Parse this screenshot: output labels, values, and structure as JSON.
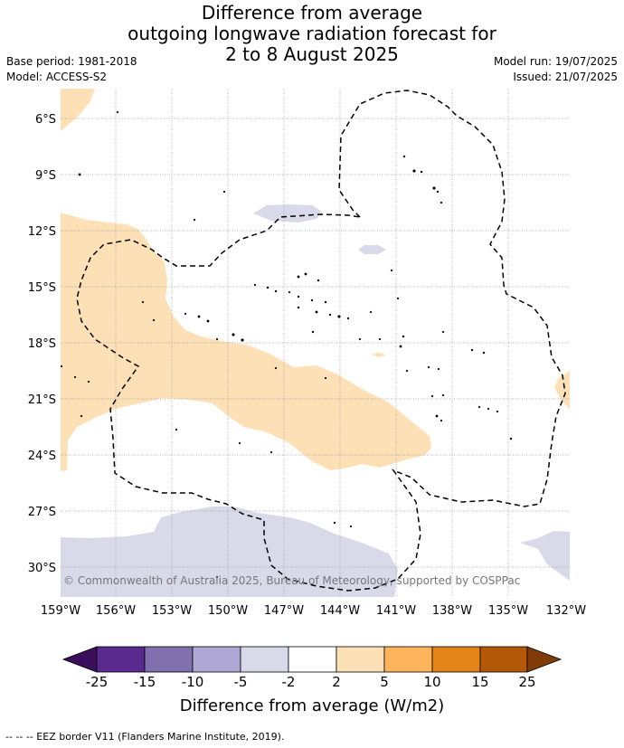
{
  "title": {
    "line1": "Difference from average",
    "line2": "outgoing longwave radiation forecast for",
    "line3": "2 to 8 August 2025"
  },
  "meta": {
    "base_period": "Base period: 1981-2018",
    "model": "Model: ACCESS-S2",
    "model_run": "Model run: 19/07/2025",
    "issued": "Issued: 21/07/2025"
  },
  "map": {
    "lon_ticks": [
      "159°W",
      "156°W",
      "153°W",
      "150°W",
      "147°W",
      "144°W",
      "141°W",
      "138°W",
      "135°W",
      "132°W"
    ],
    "lat_ticks": [
      "6°S",
      "9°S",
      "12°S",
      "15°S",
      "18°S",
      "21°S",
      "24°S",
      "27°S",
      "30°S"
    ],
    "copyright": "© Commonwealth of Australia 2025, Bureau of Meteorology, supported by COSPPac",
    "colors": {
      "light_orange": "#fde0b5",
      "light_purple": "#d9d9ea",
      "grid": "#9a9a9a"
    }
  },
  "colorbar": {
    "labels": [
      "-25",
      "-15",
      "-10",
      "-5",
      "-2",
      "2",
      "5",
      "10",
      "15",
      "25"
    ],
    "colors": [
      "#3b0f5c",
      "#5a2a8e",
      "#8070ad",
      "#b0a8d4",
      "#d9d9ea",
      "#ffffff",
      "#fde0b5",
      "#fdb45c",
      "#e38418",
      "#b35806",
      "#7f3b08"
    ],
    "title": "Difference from average (W/m2)"
  },
  "footer": "--  --  -- EEZ border V11 (Flanders Marine Institute, 2019)."
}
